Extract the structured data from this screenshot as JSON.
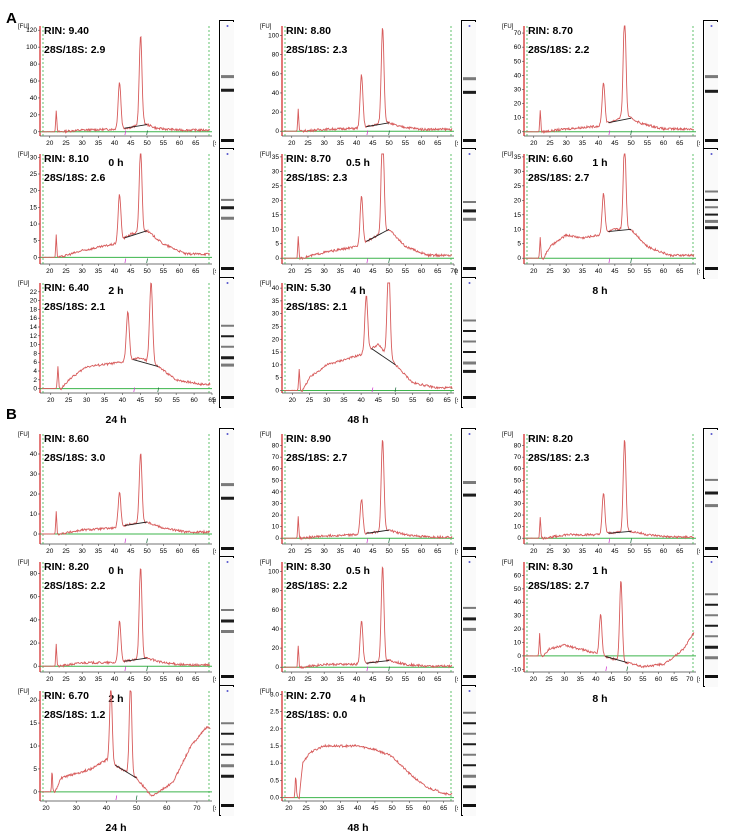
{
  "panels": [
    {
      "letter": "A"
    },
    {
      "letter": "B"
    }
  ],
  "chart_data": [
    {
      "panel": "A",
      "type": "line",
      "caption": "0 h",
      "rin": "RIN: 9.40",
      "ratio": "28S/18S: 2.9",
      "y_unit": "[FU]",
      "x_unit": "[s]",
      "xlim": [
        17,
        70
      ],
      "xticks": [
        20,
        25,
        30,
        35,
        40,
        45,
        50,
        55,
        60,
        65
      ],
      "ylim": [
        -5,
        125
      ],
      "yticks": [
        0,
        20,
        40,
        60,
        80,
        100,
        120
      ],
      "marker": 22,
      "peaks": [
        [
          41.5,
          55
        ],
        [
          48,
          105
        ]
      ],
      "hump": [
        [
          30,
          2
        ],
        [
          40,
          3
        ],
        [
          45,
          5
        ],
        [
          49,
          10
        ],
        [
          53,
          4
        ],
        [
          60,
          2
        ]
      ],
      "bands": [
        0.42,
        0.55
      ]
    },
    {
      "panel": "A",
      "type": "line",
      "caption": "0.5 h",
      "rin": "RIN: 8.80",
      "ratio": "28S/18S: 2.3",
      "y_unit": "[FU]",
      "x_unit": "[s]",
      "xlim": [
        17,
        70
      ],
      "xticks": [
        20,
        25,
        30,
        35,
        40,
        45,
        50,
        55,
        60,
        65
      ],
      "ylim": [
        -5,
        110
      ],
      "yticks": [
        0,
        20,
        40,
        60,
        80,
        100
      ],
      "marker": 22,
      "peaks": [
        [
          41.5,
          55
        ],
        [
          48,
          100
        ]
      ],
      "hump": [
        [
          30,
          2
        ],
        [
          40,
          3
        ],
        [
          45,
          6
        ],
        [
          49,
          10
        ],
        [
          53,
          5
        ],
        [
          60,
          2
        ]
      ],
      "bands": [
        0.44,
        0.57
      ]
    },
    {
      "panel": "A",
      "type": "line",
      "caption": "1 h",
      "rin": "RIN: 8.70",
      "ratio": "28S/18S: 2.2",
      "y_unit": "[FU]",
      "x_unit": "[s]",
      "xlim": [
        17,
        70
      ],
      "xticks": [
        20,
        25,
        30,
        35,
        40,
        45,
        50,
        55,
        60,
        65
      ],
      "ylim": [
        -3,
        75
      ],
      "yticks": [
        0,
        10,
        20,
        30,
        40,
        50,
        60,
        70
      ],
      "marker": 22,
      "peaks": [
        [
          41.5,
          30
        ],
        [
          48,
          70
        ]
      ],
      "hump": [
        [
          30,
          2
        ],
        [
          40,
          4
        ],
        [
          45,
          8
        ],
        [
          48,
          12
        ],
        [
          53,
          6
        ],
        [
          60,
          2
        ]
      ],
      "bands": [
        0.42,
        0.56
      ]
    },
    {
      "panel": "A",
      "type": "line",
      "caption": "2 h",
      "rin": "RIN: 8.10",
      "ratio": "28S/18S: 2.6",
      "y_unit": "[FU]",
      "x_unit": "[s]",
      "xlim": [
        17,
        70
      ],
      "xticks": [
        20,
        25,
        30,
        35,
        40,
        45,
        50,
        55,
        60,
        65
      ],
      "ylim": [
        -2,
        31
      ],
      "yticks": [
        0,
        5,
        10,
        15,
        20,
        25,
        30
      ],
      "marker": 22,
      "peaks": [
        [
          41.5,
          14
        ],
        [
          48,
          25
        ]
      ],
      "hump": [
        [
          30,
          2
        ],
        [
          40,
          4
        ],
        [
          45,
          7
        ],
        [
          50,
          8
        ],
        [
          55,
          4
        ],
        [
          62,
          1
        ]
      ],
      "bands": [
        0.38,
        0.45,
        0.55
      ]
    },
    {
      "panel": "A",
      "type": "line",
      "caption": "4 h",
      "rin": "RIN: 8.70",
      "ratio": "28S/18S: 2.3",
      "y_unit": "[FU]",
      "x_unit": "[s]",
      "xlim": [
        17,
        70
      ],
      "xticks": [
        20,
        25,
        30,
        35,
        40,
        45,
        50,
        55,
        60,
        65,
        70
      ],
      "ylim": [
        -2,
        36
      ],
      "yticks": [
        0,
        5,
        10,
        15,
        20,
        25,
        30,
        35
      ],
      "marker": 22,
      "peaks": [
        [
          41.5,
          17
        ],
        [
          48,
          38
        ]
      ],
      "hump": [
        [
          30,
          2
        ],
        [
          40,
          4
        ],
        [
          45,
          7
        ],
        [
          50,
          10
        ],
        [
          55,
          4
        ],
        [
          62,
          1
        ]
      ],
      "bands": [
        0.4,
        0.48,
        0.56
      ]
    },
    {
      "panel": "A",
      "type": "line",
      "caption": "8 h",
      "rin": "RIN: 6.60",
      "ratio": "28S/18S: 2.7",
      "y_unit": "[FU]",
      "x_unit": "[s]",
      "xlim": [
        17,
        70
      ],
      "xticks": [
        20,
        25,
        30,
        35,
        40,
        45,
        50,
        55,
        60,
        65
      ],
      "ylim": [
        -2,
        36
      ],
      "yticks": [
        0,
        5,
        10,
        15,
        20,
        25,
        30,
        35
      ],
      "marker": 22,
      "peaks": [
        [
          41.5,
          14
        ],
        [
          48,
          30
        ]
      ],
      "hump": [
        [
          25,
          4
        ],
        [
          30,
          8
        ],
        [
          35,
          7
        ],
        [
          40,
          8
        ],
        [
          45,
          10
        ],
        [
          50,
          10
        ],
        [
          55,
          4
        ],
        [
          62,
          1
        ]
      ],
      "bands": [
        0.3,
        0.38,
        0.45,
        0.52,
        0.58,
        0.64
      ]
    },
    {
      "panel": "A",
      "type": "line",
      "caption": "24 h",
      "rin": "RIN: 6.40",
      "ratio": "28S/18S: 2.1",
      "y_unit": "[FU]",
      "x_unit": "[s]",
      "xlim": [
        17,
        65
      ],
      "xticks": [
        20,
        25,
        30,
        35,
        40,
        45,
        50,
        55,
        60,
        65
      ],
      "ylim": [
        -1,
        24
      ],
      "yticks": [
        0,
        2,
        4,
        6,
        8,
        10,
        12,
        14,
        16,
        18,
        20,
        22
      ],
      "marker": 22,
      "peaks": [
        [
          41.5,
          11
        ],
        [
          48,
          18.5
        ]
      ],
      "hump": [
        [
          25,
          2
        ],
        [
          30,
          5
        ],
        [
          35,
          5.5
        ],
        [
          40,
          6
        ],
        [
          45,
          7
        ],
        [
          50,
          5
        ],
        [
          55,
          2
        ],
        [
          62,
          1
        ]
      ],
      "bands": [
        0.35,
        0.45,
        0.55,
        0.65,
        0.72
      ]
    },
    {
      "panel": "A",
      "type": "line",
      "caption": "48 h",
      "rin": "RIN: 5.30",
      "ratio": "28S/18S: 2.1",
      "y_unit": "[FU]",
      "x_unit": "[s]",
      "xlim": [
        17,
        67
      ],
      "xticks": [
        20,
        25,
        30,
        35,
        40,
        45,
        50,
        55,
        60,
        65
      ],
      "ylim": [
        -1,
        42
      ],
      "yticks": [
        0,
        5,
        10,
        15,
        20,
        25,
        30,
        35,
        40
      ],
      "marker": 22,
      "peaks": [
        [
          41.5,
          22
        ],
        [
          48,
          38
        ]
      ],
      "hump": [
        [
          25,
          5
        ],
        [
          30,
          10
        ],
        [
          35,
          12
        ],
        [
          40,
          14
        ],
        [
          45,
          18
        ],
        [
          50,
          10
        ],
        [
          55,
          3
        ],
        [
          62,
          1
        ]
      ],
      "bands": [
        0.3,
        0.4,
        0.5,
        0.6,
        0.7,
        0.78
      ]
    },
    {
      "panel": "B",
      "type": "line",
      "caption": "0 h",
      "rin": "RIN: 8.60",
      "ratio": "28S/18S: 3.0",
      "y_unit": "[FU]",
      "x_unit": "[s]",
      "xlim": [
        17,
        70
      ],
      "xticks": [
        20,
        25,
        30,
        35,
        40,
        45,
        50,
        55,
        60,
        65
      ],
      "ylim": [
        -5,
        50
      ],
      "yticks": [
        0,
        10,
        20,
        30,
        40
      ],
      "marker": 22,
      "peaks": [
        [
          41.5,
          17
        ],
        [
          48,
          35
        ]
      ],
      "hump": [
        [
          30,
          2
        ],
        [
          40,
          3
        ],
        [
          45,
          5
        ],
        [
          50,
          6
        ],
        [
          55,
          3
        ],
        [
          62,
          1
        ]
      ],
      "bands": [
        0.42,
        0.55
      ]
    },
    {
      "panel": "B",
      "type": "line",
      "caption": "0.5 h",
      "rin": "RIN: 8.90",
      "ratio": "28S/18S: 2.7",
      "y_unit": "[FU]",
      "x_unit": "[s]",
      "xlim": [
        17,
        70
      ],
      "xticks": [
        20,
        25,
        30,
        35,
        40,
        45,
        50,
        55,
        60,
        65
      ],
      "ylim": [
        -5,
        90
      ],
      "yticks": [
        0,
        10,
        20,
        30,
        40,
        50,
        60,
        70,
        80
      ],
      "marker": 22,
      "peaks": [
        [
          41.5,
          30
        ],
        [
          48,
          80
        ]
      ],
      "hump": [
        [
          30,
          2
        ],
        [
          40,
          3
        ],
        [
          45,
          5
        ],
        [
          50,
          7
        ],
        [
          55,
          3
        ],
        [
          62,
          1
        ]
      ],
      "bands": [
        0.4,
        0.52
      ]
    },
    {
      "panel": "B",
      "type": "line",
      "caption": "1 h",
      "rin": "RIN: 8.20",
      "ratio": "28S/18S: 2.3",
      "y_unit": "[FU]",
      "x_unit": "[s]",
      "xlim": [
        17,
        70
      ],
      "xticks": [
        20,
        25,
        30,
        35,
        40,
        45,
        50,
        55,
        60,
        65
      ],
      "ylim": [
        -5,
        90
      ],
      "yticks": [
        0,
        10,
        20,
        30,
        40,
        50,
        60,
        70,
        80
      ],
      "marker": 22,
      "peaks": [
        [
          41.5,
          35
        ],
        [
          48,
          80
        ]
      ],
      "hump": [
        [
          30,
          3
        ],
        [
          40,
          3
        ],
        [
          45,
          5
        ],
        [
          50,
          6
        ],
        [
          55,
          3
        ],
        [
          62,
          1
        ]
      ],
      "bands": [
        0.38,
        0.5,
        0.62
      ]
    },
    {
      "panel": "B",
      "type": "line",
      "caption": "2 h",
      "rin": "RIN: 8.20",
      "ratio": "28S/18S: 2.2",
      "y_unit": "[FU]",
      "x_unit": "[s]",
      "xlim": [
        17,
        70
      ],
      "xticks": [
        20,
        25,
        30,
        35,
        40,
        45,
        50,
        55,
        60,
        65
      ],
      "ylim": [
        -5,
        90
      ],
      "yticks": [
        0,
        20,
        40,
        60,
        80
      ],
      "marker": 22,
      "peaks": [
        [
          41.5,
          35
        ],
        [
          48,
          80
        ]
      ],
      "hump": [
        [
          30,
          3
        ],
        [
          40,
          3
        ],
        [
          45,
          5
        ],
        [
          50,
          7
        ],
        [
          55,
          3
        ],
        [
          62,
          1
        ]
      ],
      "bands": [
        0.4,
        0.5,
        0.6
      ]
    },
    {
      "panel": "B",
      "type": "line",
      "caption": "4 h",
      "rin": "RIN: 8.30",
      "ratio": "28S/18S: 2.2",
      "y_unit": "[FU]",
      "x_unit": "[s]",
      "xlim": [
        17,
        70
      ],
      "xticks": [
        20,
        25,
        30,
        35,
        40,
        45,
        50,
        55,
        60,
        65
      ],
      "ylim": [
        -5,
        110
      ],
      "yticks": [
        0,
        20,
        40,
        60,
        80,
        100
      ],
      "marker": 22,
      "peaks": [
        [
          41.5,
          45
        ],
        [
          48,
          100
        ]
      ],
      "hump": [
        [
          30,
          3
        ],
        [
          40,
          3
        ],
        [
          45,
          5
        ],
        [
          50,
          7
        ],
        [
          55,
          3
        ],
        [
          62,
          1
        ]
      ],
      "bands": [
        0.38,
        0.48,
        0.58
      ]
    },
    {
      "panel": "B",
      "type": "line",
      "caption": "8 h",
      "rin": "RIN: 8.30",
      "ratio": "28S/18S: 2.7",
      "y_unit": "[FU]",
      "x_unit": "[s]",
      "xlim": [
        17,
        72
      ],
      "xticks": [
        20,
        25,
        30,
        35,
        40,
        45,
        50,
        55,
        60,
        65,
        70
      ],
      "ylim": [
        -12,
        70
      ],
      "yticks": [
        -10,
        0,
        10,
        20,
        30,
        40,
        50,
        60
      ],
      "marker": 22,
      "peaks": [
        [
          41.5,
          30
        ],
        [
          48,
          60
        ]
      ],
      "hump": [
        [
          25,
          5
        ],
        [
          30,
          8
        ],
        [
          35,
          5
        ],
        [
          40,
          2
        ],
        [
          45,
          -2
        ],
        [
          50,
          -5
        ],
        [
          55,
          -8
        ],
        [
          62,
          -6
        ],
        [
          68,
          5
        ],
        [
          72,
          20
        ]
      ],
      "bands": [
        0.25,
        0.35,
        0.45,
        0.55,
        0.65,
        0.75,
        0.85
      ]
    },
    {
      "panel": "B",
      "type": "line",
      "caption": "24 h",
      "rin": "RIN: 6.70",
      "ratio": "28S/18S: 1.2",
      "y_unit": "[FU]",
      "x_unit": "[s]",
      "xlim": [
        18,
        75
      ],
      "xticks": [
        20,
        30,
        40,
        50,
        60,
        70
      ],
      "ylim": [
        -2,
        22
      ],
      "yticks": [
        0,
        5,
        10,
        15,
        20
      ],
      "marker": 22,
      "peaks": [
        [
          41.5,
          17
        ],
        [
          48,
          20
        ]
      ],
      "hump": [
        [
          25,
          3
        ],
        [
          30,
          4
        ],
        [
          35,
          5
        ],
        [
          40,
          7
        ],
        [
          45,
          5
        ],
        [
          50,
          3
        ],
        [
          55,
          -1
        ],
        [
          62,
          2
        ],
        [
          68,
          10
        ],
        [
          73,
          14
        ]
      ],
      "bands": [
        0.25,
        0.35,
        0.45,
        0.55,
        0.65,
        0.75
      ]
    },
    {
      "panel": "B",
      "type": "line",
      "caption": "48 h",
      "rin": "RIN: 2.70",
      "ratio": "28S/18S: 0.0",
      "y_unit": "[FU]",
      "x_unit": "[s]",
      "xlim": [
        18,
        68
      ],
      "xticks": [
        20,
        25,
        30,
        35,
        40,
        45,
        50,
        55,
        60,
        65
      ],
      "ylim": [
        -0.1,
        3.1
      ],
      "yticks": [
        0,
        0.5,
        1.0,
        1.5,
        2.0,
        2.5,
        3.0
      ],
      "ytickfmt": 1,
      "marker": 22,
      "peaks": [],
      "hump": [
        [
          24,
          1.0
        ],
        [
          26,
          1.3
        ],
        [
          30,
          1.5
        ],
        [
          35,
          1.5
        ],
        [
          40,
          1.5
        ],
        [
          45,
          1.4
        ],
        [
          50,
          1.2
        ],
        [
          55,
          0.7
        ],
        [
          60,
          0.3
        ],
        [
          66,
          0.1
        ]
      ],
      "bands": [
        0.15,
        0.25,
        0.35,
        0.45,
        0.55,
        0.65,
        0.75,
        0.85
      ]
    }
  ],
  "colors": {
    "trace": "#d75b5b",
    "baseline": "#3cb44b",
    "marker_dash": "#3cb44b",
    "hump_line": "#222",
    "lower_marker": "#cc33cc",
    "upper_marker": "#1a6b3a",
    "axis_left": "#d11f1f"
  }
}
